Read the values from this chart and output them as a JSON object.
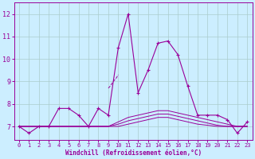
{
  "xlabel": "Windchill (Refroidissement éolien,°C)",
  "background_color": "#cceeff",
  "grid_color": "#aacccc",
  "line_color": "#990099",
  "xlim": [
    -0.5,
    23.5
  ],
  "ylim": [
    6.4,
    12.5
  ],
  "yticks": [
    7,
    8,
    9,
    10,
    11,
    12
  ],
  "xticks": [
    0,
    1,
    2,
    3,
    4,
    5,
    6,
    7,
    8,
    9,
    10,
    11,
    12,
    13,
    14,
    15,
    16,
    17,
    18,
    19,
    20,
    21,
    22,
    23
  ],
  "series_main": {
    "x": [
      0,
      1,
      2,
      3,
      4,
      5,
      6,
      7,
      8,
      9,
      10,
      11,
      12,
      13,
      14,
      15,
      16,
      17,
      18,
      19,
      20,
      21,
      22,
      23
    ],
    "y": [
      7.0,
      6.7,
      7.0,
      7.0,
      7.8,
      7.8,
      7.5,
      7.0,
      7.8,
      7.5,
      10.5,
      12.0,
      8.5,
      9.5,
      10.7,
      10.8,
      10.2,
      8.8,
      7.5,
      7.5,
      7.5,
      7.3,
      6.7,
      7.2
    ]
  },
  "series_flat1": {
    "x": [
      0,
      1,
      2,
      3,
      4,
      5,
      6,
      7,
      8,
      9,
      10,
      11,
      12,
      13,
      14,
      15,
      16,
      17,
      18,
      19,
      20,
      21,
      22,
      23
    ],
    "y": [
      7.0,
      7.0,
      7.0,
      7.0,
      7.0,
      7.0,
      7.0,
      7.0,
      7.0,
      7.0,
      7.2,
      7.4,
      7.5,
      7.6,
      7.7,
      7.7,
      7.6,
      7.5,
      7.4,
      7.3,
      7.2,
      7.1,
      7.0,
      7.0
    ]
  },
  "series_flat2": {
    "x": [
      0,
      1,
      2,
      3,
      4,
      5,
      6,
      7,
      8,
      9,
      10,
      11,
      12,
      13,
      14,
      15,
      16,
      17,
      18,
      19,
      20,
      21,
      22,
      23
    ],
    "y": [
      7.0,
      7.0,
      7.0,
      7.0,
      7.0,
      7.0,
      7.0,
      7.0,
      7.0,
      7.0,
      7.1,
      7.25,
      7.35,
      7.45,
      7.55,
      7.55,
      7.45,
      7.35,
      7.25,
      7.15,
      7.05,
      7.0,
      7.0,
      7.0
    ]
  },
  "series_flat3": {
    "x": [
      0,
      1,
      2,
      3,
      4,
      5,
      6,
      7,
      8,
      9,
      10,
      11,
      12,
      13,
      14,
      15,
      16,
      17,
      18,
      19,
      20,
      21,
      22,
      23
    ],
    "y": [
      7.0,
      7.0,
      7.0,
      7.0,
      7.0,
      7.0,
      7.0,
      7.0,
      7.0,
      7.0,
      7.0,
      7.1,
      7.2,
      7.3,
      7.4,
      7.4,
      7.3,
      7.2,
      7.1,
      7.05,
      7.0,
      7.0,
      7.0,
      7.0
    ]
  },
  "series_dashed": {
    "x": [
      9.0,
      9.2,
      9.5,
      9.8,
      10.0
    ],
    "y": [
      8.7,
      8.8,
      9.0,
      9.15,
      9.3
    ]
  }
}
